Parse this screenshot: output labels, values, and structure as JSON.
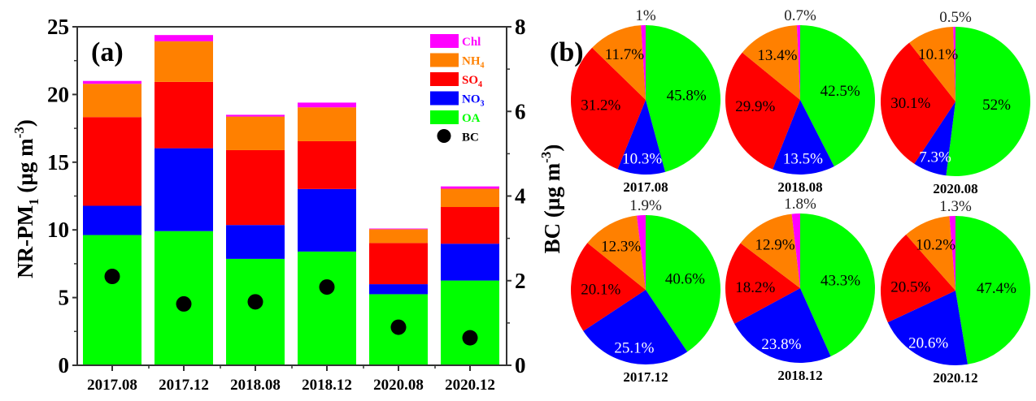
{
  "chart_data": [
    {
      "type": "bar",
      "stacked": true,
      "panel_label": "(a)",
      "ylabel": "NR-PM1 (µg m-3)",
      "ylabel_parts": {
        "main": "NR-PM",
        "sub": "1",
        "unit_open": " (µg m",
        "sup": "-3",
        "unit_close": ")"
      },
      "y2label": "BC (µg m-3)",
      "y2label_parts": {
        "main": "BC (µg m",
        "sup": "-3",
        "unit_close": ")"
      },
      "ylim": [
        0,
        25
      ],
      "yticks": [
        0,
        5,
        10,
        15,
        20,
        25
      ],
      "y2lim": [
        0,
        8
      ],
      "y2ticks": [
        0,
        2,
        4,
        6,
        8
      ],
      "categories": [
        "2017.08",
        "2017.12",
        "2018.08",
        "2018.12",
        "2020.08",
        "2020.12"
      ],
      "series": [
        {
          "name": "OA",
          "label": "OA",
          "sub": "",
          "color": "#00ff00",
          "values": [
            9.62,
            9.91,
            7.86,
            8.4,
            5.25,
            6.26
          ]
        },
        {
          "name": "NO3",
          "label": "NO",
          "sub": "3",
          "color": "#0000ff",
          "values": [
            2.16,
            6.12,
            2.5,
            4.62,
            0.74,
            2.72
          ]
        },
        {
          "name": "SO4",
          "label": "SO",
          "sub": "4",
          "color": "#ff0000",
          "values": [
            6.55,
            4.9,
            5.53,
            3.53,
            3.04,
            2.71
          ]
        },
        {
          "name": "NH4",
          "label": "NH",
          "sub": "4",
          "color": "#ff8000",
          "values": [
            2.46,
            3.0,
            2.48,
            2.5,
            1.02,
            1.35
          ]
        },
        {
          "name": "Chl",
          "label": "Chl",
          "sub": "",
          "color": "#ff00ff",
          "values": [
            0.21,
            0.46,
            0.13,
            0.35,
            0.05,
            0.17
          ]
        }
      ],
      "scatter_series": {
        "name": "BC",
        "label": "BC",
        "axis": "right",
        "color": "#000000",
        "values": [
          2.1,
          1.45,
          1.5,
          1.85,
          0.9,
          0.65
        ]
      },
      "legend": {
        "placement": "top-right",
        "order": [
          "Chl",
          "NH4",
          "SO4",
          "NO3",
          "OA",
          "BC"
        ]
      }
    },
    {
      "type": "pie",
      "panel_label": "(b)",
      "slice_order": [
        "OA",
        "NO3",
        "SO4",
        "NH4",
        "Chl"
      ],
      "colors": {
        "OA": "#00ff00",
        "NO3": "#0000ff",
        "SO4": "#ff0000",
        "NH4": "#ff8000",
        "Chl": "#ff00ff"
      },
      "pies": [
        {
          "title": "2017.08",
          "values": {
            "OA": 45.8,
            "NO3": 10.3,
            "SO4": 31.2,
            "NH4": 11.7,
            "Chl": 1.0
          },
          "labels": {
            "OA": "45.8%",
            "NO3": "10.3%",
            "SO4": "31.2%",
            "NH4": "11.7%",
            "Chl": "1%"
          }
        },
        {
          "title": "2018.08",
          "values": {
            "OA": 42.5,
            "NO3": 13.5,
            "SO4": 29.9,
            "NH4": 13.4,
            "Chl": 0.7
          },
          "labels": {
            "OA": "42.5%",
            "NO3": "13.5%",
            "SO4": "29.9%",
            "NH4": "13.4%",
            "Chl": "0.7%"
          }
        },
        {
          "title": "2020.08",
          "values": {
            "OA": 52.0,
            "NO3": 7.3,
            "SO4": 30.1,
            "NH4": 10.1,
            "Chl": 0.5
          },
          "labels": {
            "OA": "52%",
            "NO3": "7.3%",
            "SO4": "30.1%",
            "NH4": "10.1%",
            "Chl": "0.5%"
          }
        },
        {
          "title": "2017.12",
          "values": {
            "OA": 40.6,
            "NO3": 25.1,
            "SO4": 20.1,
            "NH4": 12.3,
            "Chl": 1.9
          },
          "labels": {
            "OA": "40.6%",
            "NO3": "25.1%",
            "SO4": "20.1%",
            "NH4": "12.3%",
            "Chl": "1.9%"
          }
        },
        {
          "title": "2018.12",
          "values": {
            "OA": 43.3,
            "NO3": 23.8,
            "SO4": 18.2,
            "NH4": 12.9,
            "Chl": 1.8
          },
          "labels": {
            "OA": "43.3%",
            "NO3": "23.8%",
            "SO4": "18.2%",
            "NH4": "12.9%",
            "Chl": "1.8%"
          }
        },
        {
          "title": "2020.12",
          "values": {
            "OA": 47.4,
            "NO3": 20.6,
            "SO4": 20.5,
            "NH4": 10.2,
            "Chl": 1.3
          },
          "labels": {
            "OA": "47.4%",
            "NO3": "20.6%",
            "SO4": "20.5%",
            "NH4": "10.2%",
            "Chl": "1.3%"
          }
        }
      ]
    }
  ]
}
